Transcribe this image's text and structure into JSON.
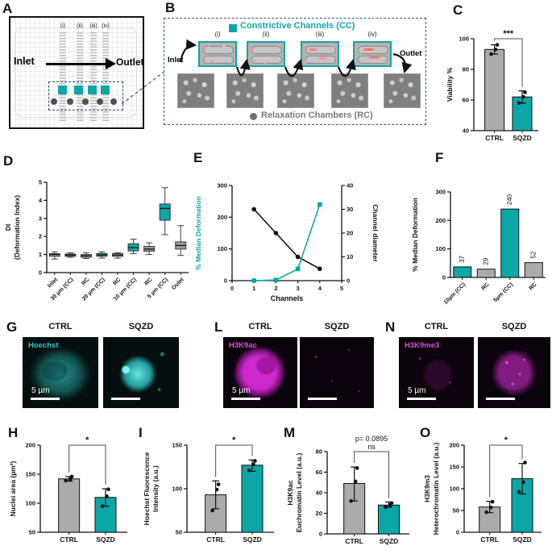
{
  "colors": {
    "teal": "#0ca6a6",
    "gray": "#ababab",
    "box_gray": "#9c9c9c",
    "magenta": "#de4ade",
    "cyan": "#2ec8c8",
    "navy": "#35597f",
    "black": "#111111"
  },
  "panels": {
    "A": {
      "letter": "A",
      "inlet": "Inlet",
      "outlet": "Outlet",
      "channels": [
        "(i)",
        "(ii)",
        "(iii)",
        "(iv)"
      ]
    },
    "B": {
      "letter": "B",
      "cc_legend": "Constrictive Channels (CC)",
      "rc_legend": "Relaxation Chambers (RC)",
      "inlet": "Inlet",
      "outlet": "Outlet",
      "channels": [
        "(i)",
        "(ii)",
        "(iii)",
        "(iv)"
      ]
    },
    "C": {
      "letter": "C"
    },
    "D": {
      "letter": "D"
    },
    "E": {
      "letter": "E"
    },
    "F": {
      "letter": "F"
    },
    "G": {
      "letter": "G",
      "cols": [
        "CTRL",
        "SQZD"
      ],
      "stain": "Hoechst",
      "scale": "5 µm"
    },
    "H": {
      "letter": "H"
    },
    "I": {
      "letter": "I"
    },
    "L": {
      "letter": "L",
      "cols": [
        "CTRL",
        "SQZD"
      ],
      "stain": "H3K9ac",
      "scale": "5 µm"
    },
    "M": {
      "letter": "M"
    },
    "N": {
      "letter": "N",
      "cols": [
        "CTRL",
        "SQZD"
      ],
      "stain": "H3K9me3",
      "scale": "5 µm"
    },
    "O": {
      "letter": "O"
    }
  },
  "chart_data": [
    {
      "panel": "C",
      "type": "bar",
      "ylabel": [
        "Viability %"
      ],
      "ylim": [
        40,
        100
      ],
      "yticks": [
        40,
        60,
        80,
        100
      ],
      "categories": [
        "CTRL",
        "SQZD"
      ],
      "values": [
        93,
        62
      ],
      "errors": [
        [
          90,
          96
        ],
        [
          58,
          66
        ]
      ],
      "points": [
        [
          90,
          93,
          96
        ],
        [
          58,
          62,
          65
        ]
      ],
      "bar_colors": [
        "gray",
        "teal"
      ],
      "sig": {
        "label": "***"
      }
    },
    {
      "panel": "D",
      "type": "box",
      "ylabel": [
        "DI",
        "(Deformation Index)"
      ],
      "ylim": [
        0,
        5
      ],
      "yticks": [
        0,
        1,
        2,
        3,
        4,
        5
      ],
      "categories": [
        "Inlet",
        "30 µm (CC)",
        "RC",
        "20 µm (CC)",
        "RC",
        "10 µm (CC)",
        "RC",
        "5 µm (CC)",
        "Oulet"
      ],
      "box_colors": [
        "box_gray",
        "teal",
        "box_gray",
        "teal",
        "box_gray",
        "teal",
        "box_gray",
        "teal",
        "box_gray"
      ],
      "boxes": [
        [
          0.75,
          0.9,
          1.0,
          1.05,
          1.15
        ],
        [
          0.85,
          0.9,
          0.97,
          1.03,
          1.1
        ],
        [
          0.78,
          0.85,
          0.93,
          1.0,
          1.1
        ],
        [
          0.8,
          0.9,
          0.98,
          1.06,
          1.15
        ],
        [
          0.8,
          0.9,
          0.97,
          1.05,
          1.1
        ],
        [
          1.05,
          1.2,
          1.38,
          1.6,
          1.85
        ],
        [
          1.0,
          1.18,
          1.3,
          1.45,
          1.65
        ],
        [
          2.1,
          2.9,
          3.55,
          3.8,
          4.7
        ],
        [
          0.95,
          1.3,
          1.5,
          1.7,
          2.6
        ]
      ]
    },
    {
      "panel": "E",
      "type": "line_dual",
      "xlabel": "Channels",
      "xlim": [
        0,
        5
      ],
      "xticks": [
        0,
        1,
        2,
        3,
        4,
        5
      ],
      "x": [
        1,
        2,
        3,
        4
      ],
      "left": {
        "label": "% Median Deformation",
        "ylim": [
          0,
          300
        ],
        "yticks": [
          0,
          100,
          200,
          300
        ],
        "values": [
          0,
          2,
          37,
          240
        ],
        "color": "teal"
      },
      "right": {
        "label": "Channel diameter",
        "ylim": [
          0,
          40
        ],
        "yticks": [
          0,
          10,
          20,
          30,
          40
        ],
        "values": [
          30,
          20,
          10,
          5
        ],
        "color": "black"
      }
    },
    {
      "panel": "F",
      "type": "bar_labeled",
      "ylabel": [
        "% Median Deformation"
      ],
      "ylim": [
        0,
        300
      ],
      "yticks": [
        0,
        100,
        200,
        300
      ],
      "categories": [
        "10µm (CC)",
        "RC",
        "5µm (CC)",
        "RC"
      ],
      "values": [
        37,
        29,
        240,
        52
      ],
      "value_labels": [
        "37",
        "29",
        "240",
        "52"
      ],
      "bar_colors": [
        "teal",
        "gray",
        "teal",
        "gray"
      ]
    },
    {
      "panel": "H",
      "type": "bar",
      "ylabel": [
        "Nuclei area (µm²)"
      ],
      "ylim": [
        50,
        200
      ],
      "yticks": [
        50,
        100,
        150,
        200
      ],
      "categories": [
        "CTRL",
        "SQZD"
      ],
      "values": [
        142,
        110
      ],
      "errors": [
        [
          138,
          146
        ],
        [
          95,
          125
        ]
      ],
      "points": [
        [
          139,
          141,
          146
        ],
        [
          95,
          112,
          124
        ]
      ],
      "bar_colors": [
        "gray",
        "teal"
      ],
      "sig": {
        "label": "*"
      }
    },
    {
      "panel": "I",
      "type": "bar",
      "ylabel": [
        "Hoechst Fluorescence",
        "Intensity (a.u.)"
      ],
      "ylim": [
        50,
        150
      ],
      "yticks": [
        50,
        100,
        150
      ],
      "categories": [
        "CTRL",
        "SQZD"
      ],
      "values": [
        93,
        127
      ],
      "errors": [
        [
          77,
          109
        ],
        [
          120,
          133
        ]
      ],
      "points": [
        [
          75,
          99,
          105
        ],
        [
          121,
          128,
          132
        ]
      ],
      "bar_colors": [
        "gray",
        "teal"
      ],
      "sig": {
        "label": "*"
      }
    },
    {
      "panel": "M",
      "type": "bar",
      "ylabel": [
        "H3K9ac",
        "Euchromatin Level (a.u.)"
      ],
      "ylim": [
        0,
        80
      ],
      "yticks": [
        0,
        20,
        40,
        60,
        80
      ],
      "categories": [
        "CTRL",
        "SQZD"
      ],
      "values": [
        49,
        28
      ],
      "errors": [
        [
          32,
          65
        ],
        [
          26,
          31
        ]
      ],
      "points": [
        [
          32,
          51,
          64
        ],
        [
          26,
          28,
          30
        ]
      ],
      "bar_colors": [
        "gray",
        "teal"
      ],
      "sig": {
        "label": "p= 0.0895",
        "sub": "ns"
      }
    },
    {
      "panel": "O",
      "type": "bar",
      "ylabel": [
        "H3K9m3",
        "Heterochromatin Level (a.u.)"
      ],
      "ylim": [
        0,
        200
      ],
      "yticks": [
        0,
        50,
        100,
        150,
        200
      ],
      "categories": [
        "CTRL",
        "SQZD"
      ],
      "values": [
        58,
        123
      ],
      "errors": [
        [
          45,
          71
        ],
        [
          88,
          158
        ]
      ],
      "points": [
        [
          46,
          57,
          70
        ],
        [
          93,
          115,
          160
        ]
      ],
      "bar_colors": [
        "gray",
        "teal"
      ],
      "sig": {
        "label": "*"
      }
    }
  ]
}
